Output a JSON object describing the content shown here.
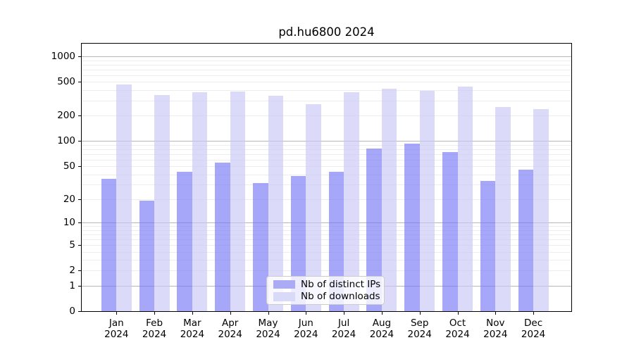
{
  "chart_title": "pd.hu6800 2024",
  "legend": {
    "items": [
      {
        "label": "Nb of distinct IPs",
        "color": "#aaaaf5"
      },
      {
        "label": "Nb of downloads",
        "color": "#d9d9f8"
      }
    ]
  },
  "chart_data": {
    "type": "bar",
    "title": "pd.hu6800 2024",
    "categories": [
      {
        "month": "Jan",
        "year": "2024"
      },
      {
        "month": "Feb",
        "year": "2024"
      },
      {
        "month": "Mar",
        "year": "2024"
      },
      {
        "month": "Apr",
        "year": "2024"
      },
      {
        "month": "May",
        "year": "2024"
      },
      {
        "month": "Jun",
        "year": "2024"
      },
      {
        "month": "Jul",
        "year": "2024"
      },
      {
        "month": "Aug",
        "year": "2024"
      },
      {
        "month": "Sep",
        "year": "2024"
      },
      {
        "month": "Oct",
        "year": "2024"
      },
      {
        "month": "Nov",
        "year": "2024"
      },
      {
        "month": "Dec",
        "year": "2024"
      }
    ],
    "series": [
      {
        "name": "Nb of distinct IPs",
        "values": [
          35,
          19,
          43,
          55,
          31,
          38,
          43,
          81,
          93,
          74,
          33,
          45
        ],
        "color": "#aaaaf5",
        "bar_fill": "rgba(120,120,246,0.65)"
      },
      {
        "name": "Nb of downloads",
        "values": [
          470,
          348,
          378,
          388,
          341,
          274,
          376,
          420,
          395,
          445,
          254,
          237
        ],
        "color": "#d9d9f8",
        "bar_fill": "rgba(200,200,246,0.66)"
      }
    ],
    "y_ticks": [
      0,
      1,
      2,
      5,
      10,
      20,
      50,
      100,
      200,
      500,
      1000
    ],
    "y_major_gridlines": [
      1,
      10,
      100,
      1000
    ],
    "y_scale": "log1p",
    "ylim": [
      0,
      1466
    ],
    "xlabel": "",
    "ylabel": "",
    "grid": true,
    "legend_position": "lower center",
    "colors": {
      "grid_major": "#b6b6b6",
      "grid_minor": "#ededed",
      "spine": "#000000",
      "background": "#ffffff"
    }
  }
}
